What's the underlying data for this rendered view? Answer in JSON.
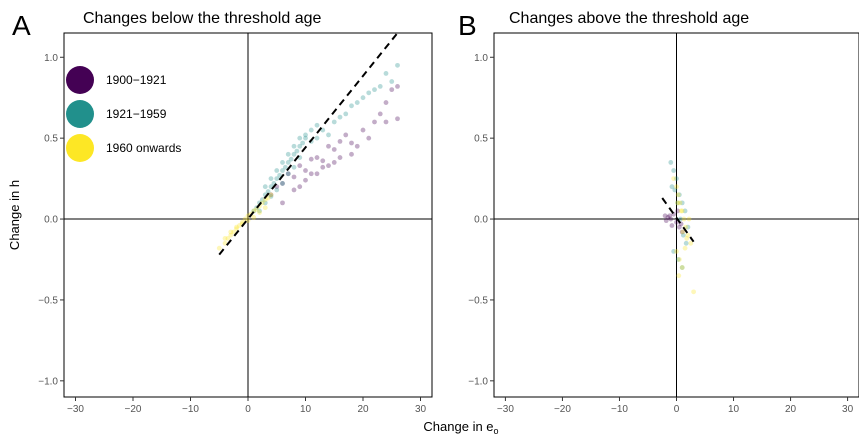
{
  "chart_data": [
    {
      "type": "scatter",
      "panel_label": "A",
      "title": "Changes below the threshold age",
      "ylabel": "Change in h",
      "xlim": [
        -32,
        32
      ],
      "ylim": [
        -1.1,
        1.15
      ],
      "x_ticks": [
        -30,
        -20,
        -10,
        0,
        10,
        20,
        30
      ],
      "y_ticks": [
        -1.0,
        -0.5,
        0.0,
        0.5,
        1.0
      ],
      "x_tick_labels": [
        "−30",
        "−20",
        "−10",
        "0",
        "10",
        "20",
        "30"
      ],
      "y_tick_labels": [
        "−1.0",
        "−0.5",
        "0.0",
        "0.5",
        "1.0"
      ],
      "legend_position": "top-left",
      "colors": {
        "1900-1921": "#440154",
        "1921-1959": "#21908C",
        "1960 onwards": "#FDE725"
      },
      "legend": [
        {
          "label": "1900−1921",
          "color": "#440154"
        },
        {
          "label": "1921−1959",
          "color": "#21908C"
        },
        {
          "label": "1960 onwards",
          "color": "#FDE725"
        }
      ],
      "fit_line": {
        "x": [
          -5,
          26
        ],
        "y": [
          -0.22,
          1.15
        ]
      },
      "series": [
        {
          "name": "1900−1921",
          "color": "#440154",
          "x": [
            4,
            5,
            6,
            7,
            8,
            9,
            10,
            11,
            12,
            13,
            14,
            15,
            16,
            17,
            18,
            20,
            22,
            24,
            25,
            26,
            9,
            11,
            13,
            15,
            18,
            21,
            23,
            6,
            8,
            10,
            12,
            14,
            16,
            19,
            24,
            26
          ],
          "y": [
            0.15,
            0.2,
            0.22,
            0.28,
            0.26,
            0.33,
            0.3,
            0.37,
            0.38,
            0.36,
            0.45,
            0.43,
            0.48,
            0.52,
            0.47,
            0.55,
            0.6,
            0.72,
            0.8,
            0.62,
            0.2,
            0.28,
            0.32,
            0.35,
            0.4,
            0.5,
            0.65,
            0.1,
            0.18,
            0.24,
            0.28,
            0.33,
            0.38,
            0.45,
            0.6,
            0.82
          ]
        },
        {
          "name": "1921−1959",
          "color": "#21908C",
          "x": [
            1,
            1.5,
            2,
            2.5,
            3,
            3.5,
            4,
            4.5,
            5,
            5.5,
            6,
            6.5,
            7,
            7.5,
            8,
            8.5,
            9,
            9.5,
            10,
            11,
            12,
            13,
            14,
            15,
            16,
            17,
            18,
            19,
            20,
            21,
            22,
            23,
            24,
            25,
            26,
            3,
            4,
            5,
            6,
            7,
            8,
            9,
            10,
            11,
            12,
            2,
            3,
            4,
            5,
            6,
            7,
            8,
            9
          ],
          "y": [
            0.05,
            0.07,
            0.1,
            0.12,
            0.15,
            0.17,
            0.2,
            0.22,
            0.25,
            0.27,
            0.3,
            0.32,
            0.35,
            0.37,
            0.4,
            0.42,
            0.45,
            0.47,
            0.5,
            0.55,
            0.58,
            0.55,
            0.52,
            0.6,
            0.63,
            0.65,
            0.7,
            0.72,
            0.75,
            0.78,
            0.8,
            0.82,
            0.9,
            0.85,
            0.95,
            0.2,
            0.25,
            0.3,
            0.35,
            0.4,
            0.45,
            0.5,
            0.52,
            0.48,
            0.5,
            0.05,
            0.1,
            0.14,
            0.18,
            0.22,
            0.28,
            0.32,
            0.38
          ]
        },
        {
          "name": "1960 onwards",
          "color": "#FDE725",
          "x": [
            -5,
            -4,
            -3.5,
            -3,
            -2.5,
            -2,
            -1.5,
            -1,
            -0.5,
            0,
            0.5,
            1,
            1.5,
            2,
            2.5,
            3,
            3.5,
            4,
            -4,
            -3,
            -2,
            -1,
            0,
            1,
            2,
            3
          ],
          "y": [
            -0.18,
            -0.15,
            -0.12,
            -0.1,
            -0.08,
            -0.06,
            -0.04,
            -0.02,
            0,
            0.02,
            0.03,
            0.05,
            0.06,
            0.08,
            0.1,
            0.12,
            0.13,
            0.15,
            -0.12,
            -0.08,
            -0.05,
            -0.03,
            -0.01,
            0.01,
            0.04,
            0.07
          ]
        }
      ]
    },
    {
      "type": "scatter",
      "panel_label": "B",
      "title": "Changes above the threshold age",
      "ylabel": "",
      "xlim": [
        -32,
        32
      ],
      "ylim": [
        -1.1,
        1.15
      ],
      "x_ticks": [
        -30,
        -20,
        -10,
        0,
        10,
        20,
        30
      ],
      "y_ticks": [
        -1.0,
        -0.5,
        0.0,
        0.5,
        1.0
      ],
      "x_tick_labels": [
        "−30",
        "−20",
        "−10",
        "0",
        "10",
        "20",
        "30"
      ],
      "y_tick_labels": [
        "−1.0",
        "−0.5",
        "0.0",
        "0.5",
        "1.0"
      ],
      "fit_line": {
        "x": [
          -2.5,
          3
        ],
        "y": [
          0.13,
          -0.14
        ]
      },
      "series": [
        {
          "name": "1900−1921",
          "color": "#440154",
          "x": [
            -2,
            -1.5,
            -1,
            -0.5,
            0,
            0.5,
            1,
            -1.8,
            -1.2,
            -0.8,
            0.2,
            0.8
          ],
          "y": [
            0.02,
            0.01,
            0.0,
            0.03,
            -0.02,
            -0.05,
            -0.08,
            -0.01,
            0.02,
            -0.04,
            0.05,
            -0.03
          ]
        },
        {
          "name": "1921−1959",
          "color": "#21908C",
          "x": [
            -1,
            -0.5,
            0,
            0.5,
            1,
            1.5,
            2,
            -0.8,
            -0.3,
            0.2,
            0.7,
            1.2,
            1.7,
            -0.5,
            0.3,
            1
          ],
          "y": [
            0.35,
            0.3,
            0.25,
            0.15,
            0.1,
            0.05,
            -0.05,
            0.2,
            0.18,
            0.1,
            0.0,
            -0.1,
            -0.15,
            -0.2,
            -0.25,
            -0.3
          ]
        },
        {
          "name": "1960 onwards",
          "color": "#FDE725",
          "x": [
            -0.5,
            0,
            0.3,
            0.6,
            1,
            1.3,
            1.6,
            2,
            2.5,
            3,
            0,
            0.5,
            1,
            1.5,
            0.2,
            0.8,
            1.8,
            0.4,
            1.1,
            2.2
          ],
          "y": [
            0.25,
            0.2,
            0.15,
            0.1,
            0.05,
            0.0,
            -0.05,
            -0.1,
            -0.15,
            -0.45,
            -0.2,
            -0.25,
            -0.3,
            -0.18,
            0.1,
            0.05,
            -0.12,
            -0.35,
            -0.08,
            0.0
          ]
        }
      ]
    }
  ],
  "shared_xlabel_main": "Change in e",
  "shared_xlabel_subscript": "o"
}
